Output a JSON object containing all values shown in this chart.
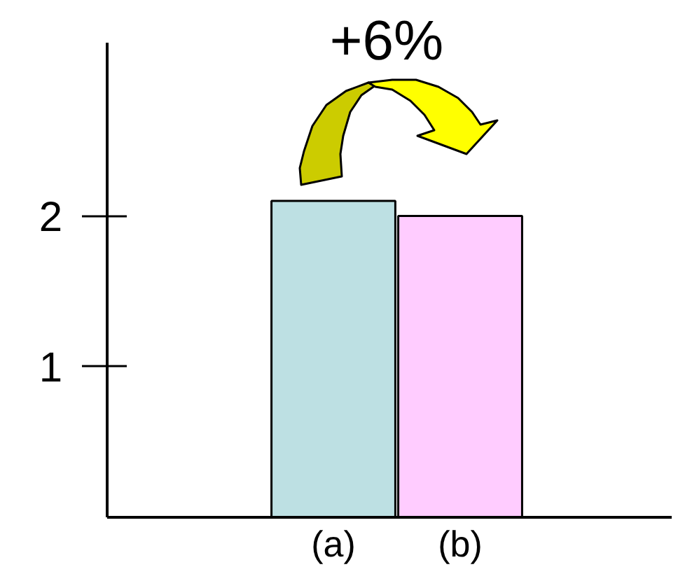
{
  "chart_data": {
    "type": "bar",
    "categories": [
      "(a)",
      "(b)"
    ],
    "values": [
      2.1,
      2.0
    ],
    "colors": [
      "#bde0e3",
      "#ffccff"
    ],
    "ylim": [
      0,
      3.15
    ],
    "yticks": [
      1,
      2
    ],
    "annotations": [
      "+6%"
    ]
  }
}
